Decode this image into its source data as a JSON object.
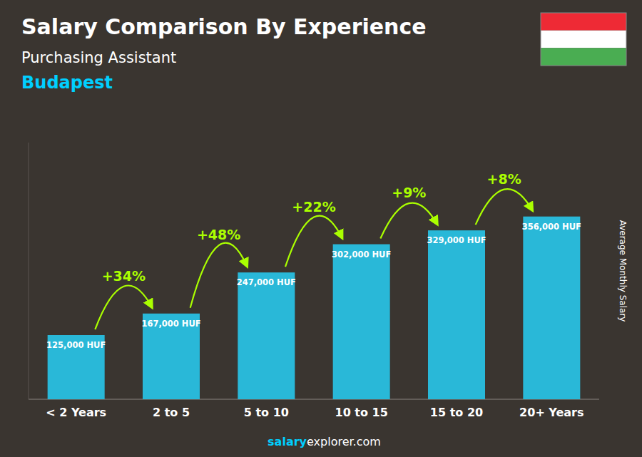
{
  "chart_data": {
    "type": "bar",
    "title": "Salary Comparison By Experience",
    "subtitle": "Purchasing Assistant",
    "y_label": "Average Monthly Salary",
    "categories": [
      "< 2 Years",
      "2 to 5",
      "5 to 10",
      "10 to 15",
      "15 to 20",
      "20+ Years"
    ],
    "values": [
      125000,
      167000,
      247000,
      302000,
      329000,
      356000
    ],
    "value_labels": [
      "125,000 HUF",
      "167,000 HUF",
      "247,000 HUF",
      "302,000 HUF",
      "329,000 HUF",
      "356,000 HUF"
    ],
    "data_labels": true,
    "color": "#29B8D8",
    "ylim": [
      0,
      500000
    ],
    "tick_labels": "x",
    "grid": false,
    "annotations": {
      "city": "Budapest",
      "city_color": "#00CFFF",
      "changes": [
        "+34%",
        "+48%",
        "+22%",
        "+9%",
        "+8%"
      ],
      "change_color": "#AAFF00",
      "watermark": [
        "salary",
        "explorer.com"
      ],
      "watermark_colors": [
        "#00CFFF",
        "#FFFFFF"
      ]
    },
    "flag_colors": [
      "#EE2A35",
      "#FFFFFF",
      "#4AAD52"
    ]
  }
}
